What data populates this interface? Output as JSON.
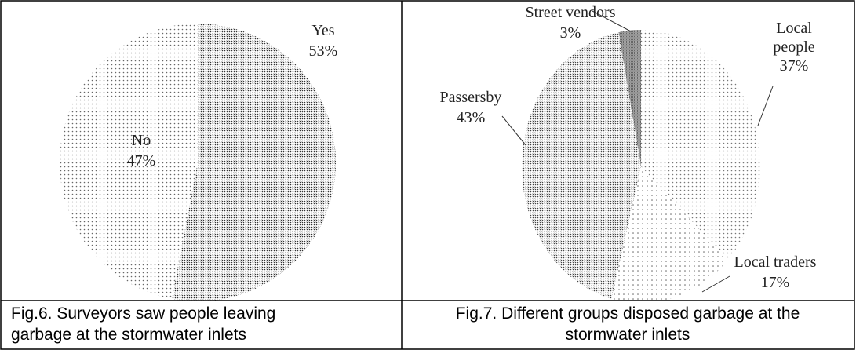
{
  "chart_data": [
    {
      "type": "pie",
      "categories": [
        "Yes",
        "No"
      ],
      "values": [
        53,
        47
      ],
      "value_labels": [
        "53%",
        "47%"
      ],
      "colors": [
        "#333333",
        "#666666"
      ],
      "caption": [
        "Fig.6. Surveyors saw people leaving",
        "garbage at the stormwater inlets"
      ]
    },
    {
      "type": "pie",
      "categories": [
        "Local people",
        "Local traders",
        "Passersby",
        "Street vendors"
      ],
      "values": [
        37,
        17,
        43,
        3
      ],
      "value_labels": [
        "37%",
        "17%",
        "43%",
        "3%"
      ],
      "colors": [
        "#777777",
        "#666666",
        "#444444",
        "#222222"
      ],
      "caption": [
        "Fig.7. Different groups disposed garbage at the",
        "stormwater inlets"
      ]
    }
  ]
}
